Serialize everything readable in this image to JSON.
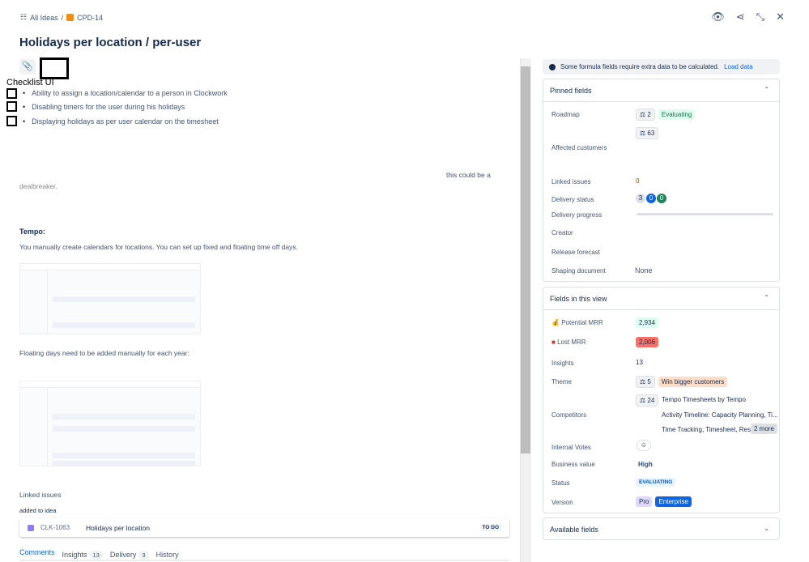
{
  "breadcrumb": {
    "parent": "All Ideas",
    "separator": "/",
    "key": "CPD-14"
  },
  "title": "Holidays per location / per-user",
  "header_icons": [
    "eye-icon",
    "share-icon",
    "collapse-icon",
    "close-icon"
  ],
  "checklist": {
    "title": "Checklist UI",
    "items": [
      "Ability to assign a location/calendar to a person in Clockwork",
      "Disabling timers for the user during his holidays",
      "Displaying holidays as per user calendar on the timesheet"
    ]
  },
  "body": {
    "fragment1": "this could be a",
    "fragment2": "dealbreaker.",
    "tempo_heading": "Tempo:",
    "tempo_text": "You manually create calendars for locations. You can set up fixed and floating time off days.",
    "floating_text": "Floating days need to be added manually for each year:"
  },
  "linked": {
    "title": "Linked issues",
    "subtitle": "added to idea",
    "issue_key": "CLK-1063",
    "issue_title": "Holidays per location",
    "issue_status": "TO DO"
  },
  "tabs": [
    {
      "label": "Comments"
    },
    {
      "label": "Insights",
      "count": "13"
    },
    {
      "label": "Delivery",
      "count": "3"
    },
    {
      "label": "History"
    }
  ],
  "banner": {
    "text": "Some formula fields require extra data to be calculated.",
    "link": "Load data"
  },
  "pinned": {
    "title": "Pinned fields",
    "roadmap_label": "Roadmap",
    "roadmap_count": "2",
    "roadmap_value": "Evaluating",
    "affected_label": "Affected customers",
    "affected_count": "63",
    "linked_label": "Linked issues",
    "linked_value": "0",
    "delivery_status_label": "Delivery status",
    "delivery_status": [
      "3",
      "0",
      "0"
    ],
    "delivery_progress_label": "Delivery progress",
    "delivery_progress": 0,
    "creator_label": "Creator",
    "release_label": "Release forecast",
    "shaping_label": "Shaping document",
    "shaping_value": "None"
  },
  "view": {
    "title": "Fields in this view",
    "pmrr_label": "Potential MRR",
    "pmrr": "2,934",
    "lmrr_label": "Lost MRR",
    "lmrr": "2,006",
    "insights_label": "Insights",
    "insights": "13",
    "theme_label": "Theme",
    "theme_count": "5",
    "theme_value": "Win bigger customers",
    "comp_label": "Competitors",
    "comp_count": "24",
    "comp": [
      "Tempo Timesheets by Tempo",
      "Activity Timeline: Capacity Planning, Ti...",
      "Time Tracking, Timesheet, Resou"
    ],
    "comp_more": "2 more",
    "votes_label": "Internal Votes",
    "bv_label": "Business value",
    "bv": "High",
    "status_label": "Status",
    "status": "EVALUATING",
    "version_label": "Version",
    "versions": [
      "Pro",
      "Enterprise"
    ]
  },
  "available": {
    "title": "Available fields"
  },
  "colors": {
    "accent": "#0c66e4",
    "green_bg": "#dcfff1",
    "red_bg": "#f87168",
    "orange_bg": "#fedec8",
    "purple": "#8f7ee7"
  }
}
